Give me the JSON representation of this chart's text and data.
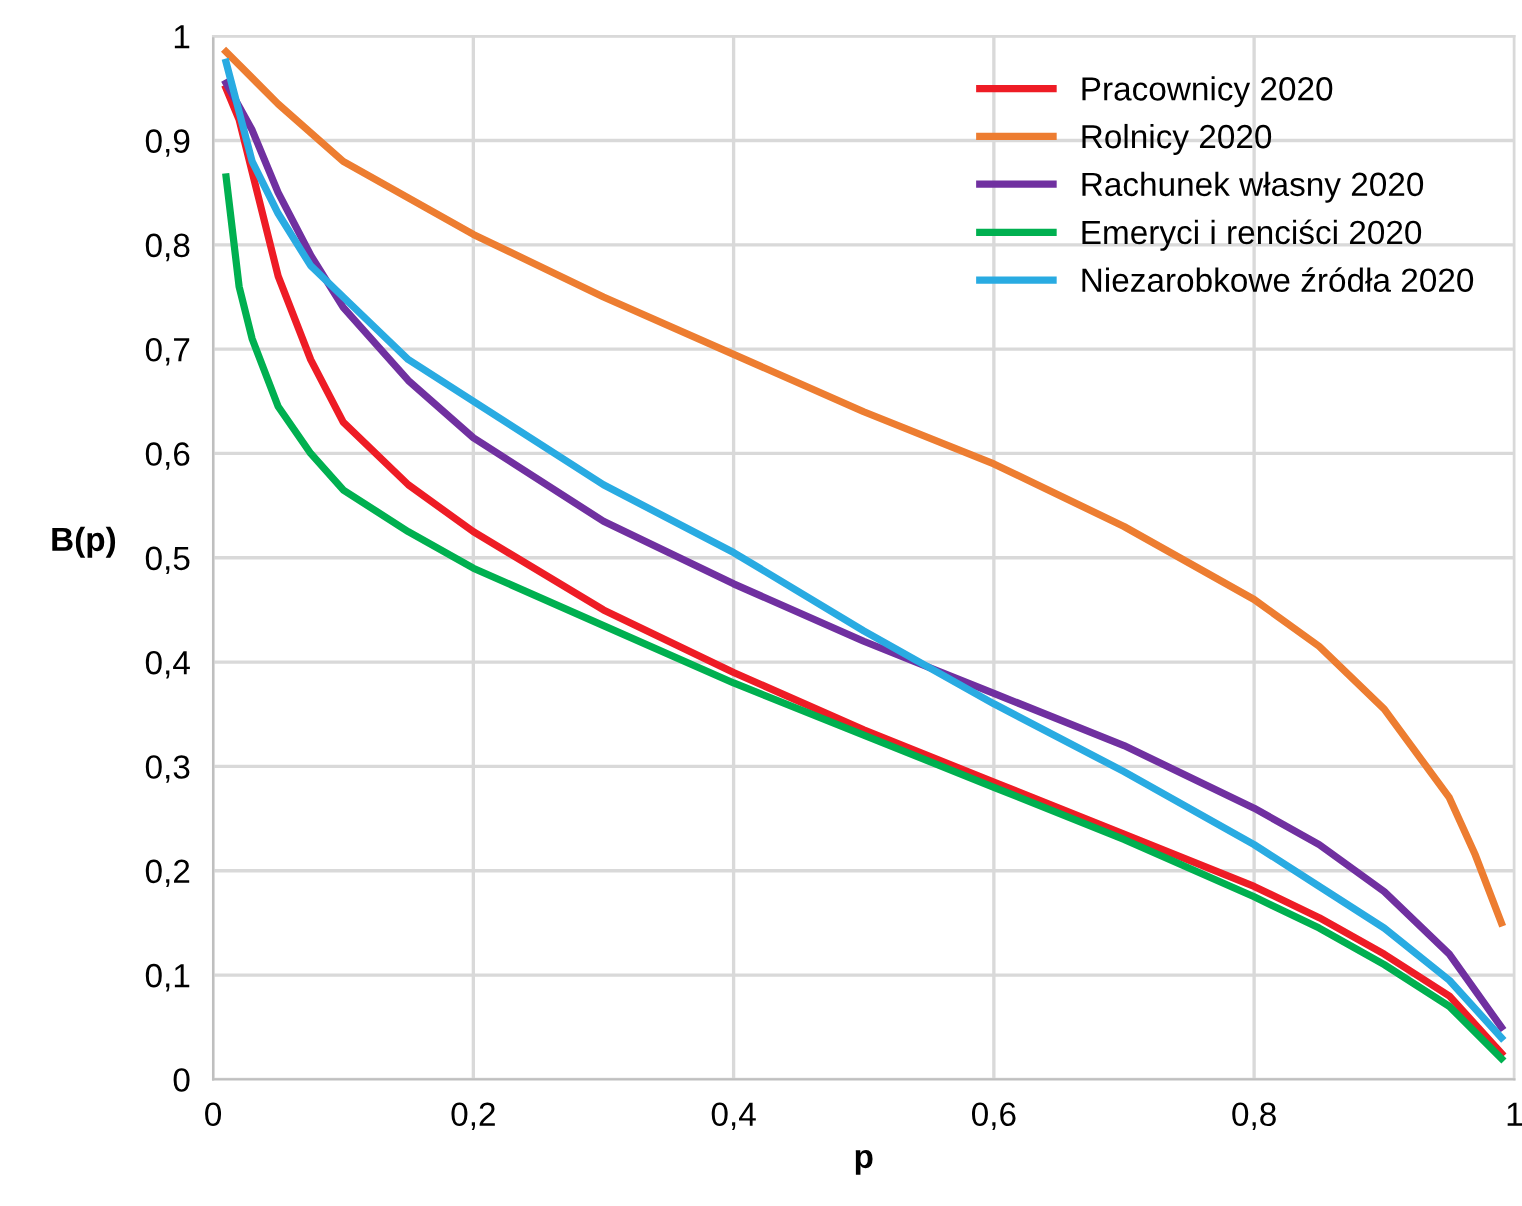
{
  "chart_data": {
    "type": "line",
    "xlabel": "p",
    "ylabel": "B(p)",
    "xlim": [
      0,
      1
    ],
    "ylim": [
      0,
      1
    ],
    "xticks": [
      0,
      {
        "value": 0.2,
        "label": "0,2"
      },
      {
        "value": 0.4,
        "label": "0,4"
      },
      {
        "value": 0.6,
        "label": "0,6"
      },
      {
        "value": 0.8,
        "label": "0,8"
      },
      1
    ],
    "yticks": [
      0,
      {
        "value": 0.1,
        "label": "0,1"
      },
      {
        "value": 0.2,
        "label": "0,2"
      },
      {
        "value": 0.3,
        "label": "0,3"
      },
      {
        "value": 0.4,
        "label": "0,4"
      },
      {
        "value": 0.5,
        "label": "0,5"
      },
      {
        "value": 0.6,
        "label": "0,6"
      },
      {
        "value": 0.7,
        "label": "0,7"
      },
      {
        "value": 0.8,
        "label": "0,8"
      },
      {
        "value": 0.9,
        "label": "0,9"
      },
      1
    ],
    "grid": true,
    "legend": "top right",
    "marker": "none",
    "line_style": "solid",
    "series": [
      {
        "name": "Pracownicy 2020",
        "color": "#ee1c25",
        "x": [
          0.01,
          0.02,
          0.03,
          0.05,
          0.075,
          0.1,
          0.15,
          0.2,
          0.3,
          0.4,
          0.5,
          0.6,
          0.7,
          0.8,
          0.85,
          0.9,
          0.95,
          0.99
        ],
        "values": [
          0.95,
          0.92,
          0.87,
          0.77,
          0.69,
          0.63,
          0.57,
          0.525,
          0.45,
          0.39,
          0.335,
          0.285,
          0.235,
          0.185,
          0.155,
          0.12,
          0.08,
          0.025
        ]
      },
      {
        "name": "Rolnicy 2020",
        "color": "#ed7d31",
        "x": [
          0.01,
          0.03,
          0.05,
          0.1,
          0.15,
          0.2,
          0.3,
          0.4,
          0.5,
          0.6,
          0.7,
          0.8,
          0.85,
          0.9,
          0.95,
          0.97,
          0.99
        ],
        "values": [
          0.985,
          0.96,
          0.935,
          0.88,
          0.845,
          0.81,
          0.75,
          0.695,
          0.64,
          0.59,
          0.53,
          0.46,
          0.415,
          0.355,
          0.27,
          0.215,
          0.15
        ]
      },
      {
        "name": "Rachunek własny 2020",
        "color": "#7030a0",
        "x": [
          0.01,
          0.03,
          0.05,
          0.075,
          0.1,
          0.15,
          0.2,
          0.3,
          0.4,
          0.5,
          0.6,
          0.7,
          0.8,
          0.85,
          0.9,
          0.95,
          0.99
        ],
        "values": [
          0.955,
          0.91,
          0.85,
          0.79,
          0.74,
          0.67,
          0.615,
          0.535,
          0.475,
          0.42,
          0.37,
          0.32,
          0.26,
          0.225,
          0.18,
          0.12,
          0.05
        ]
      },
      {
        "name": "Emeryci i renciści 2020",
        "color": "#00b050",
        "x": [
          0.01,
          0.02,
          0.03,
          0.05,
          0.075,
          0.1,
          0.15,
          0.2,
          0.3,
          0.4,
          0.5,
          0.6,
          0.7,
          0.8,
          0.85,
          0.9,
          0.95,
          0.99
        ],
        "values": [
          0.865,
          0.76,
          0.71,
          0.645,
          0.6,
          0.565,
          0.525,
          0.49,
          0.435,
          0.38,
          0.33,
          0.28,
          0.23,
          0.175,
          0.145,
          0.11,
          0.07,
          0.02
        ]
      },
      {
        "name": "Niezarobkowe źródła 2020",
        "color": "#29abe2",
        "x": [
          0.01,
          0.03,
          0.05,
          0.075,
          0.1,
          0.15,
          0.2,
          0.3,
          0.4,
          0.5,
          0.6,
          0.7,
          0.8,
          0.85,
          0.9,
          0.95,
          0.99
        ],
        "values": [
          0.975,
          0.88,
          0.83,
          0.78,
          0.75,
          0.69,
          0.65,
          0.57,
          0.505,
          0.43,
          0.36,
          0.295,
          0.225,
          0.185,
          0.145,
          0.095,
          0.04
        ]
      }
    ]
  }
}
